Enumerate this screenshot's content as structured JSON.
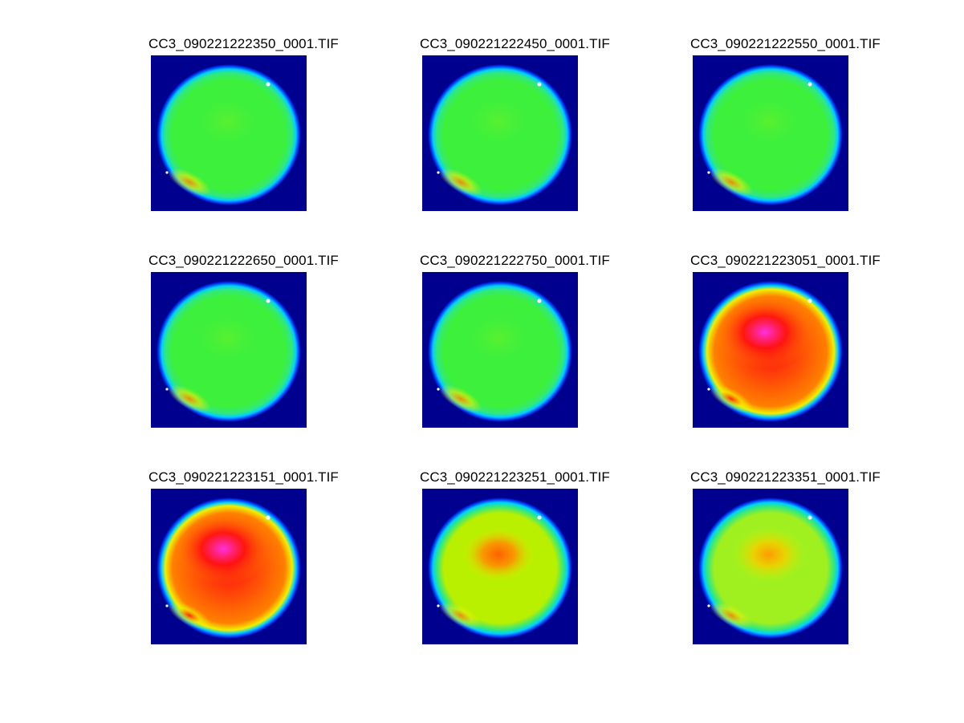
{
  "figure": {
    "panels": [
      {
        "title": "CC3_090221222350_0001.TIF",
        "intensity": "green"
      },
      {
        "title": "CC3_090221222450_0001.TIF",
        "intensity": "green"
      },
      {
        "title": "CC3_090221222550_0001.TIF",
        "intensity": "green"
      },
      {
        "title": "CC3_090221222650_0001.TIF",
        "intensity": "green"
      },
      {
        "title": "CC3_090221222750_0001.TIF",
        "intensity": "green"
      },
      {
        "title": "CC3_090221223051_0001.TIF",
        "intensity": "hot"
      },
      {
        "title": "CC3_090221223151_0001.TIF",
        "intensity": "hot"
      },
      {
        "title": "CC3_090221223251_0001.TIF",
        "intensity": "warm"
      },
      {
        "title": "CC3_090221223351_0001.TIF",
        "intensity": "mild"
      }
    ],
    "colors": {
      "background": "#00008f",
      "rim_blue": "#0040ff",
      "rim_cyan": "#00d0ff",
      "green": "#3cf03c",
      "yellow": "#f0f000",
      "orange": "#ff8000",
      "red": "#ff1010",
      "magenta": "#ff30e0"
    }
  }
}
